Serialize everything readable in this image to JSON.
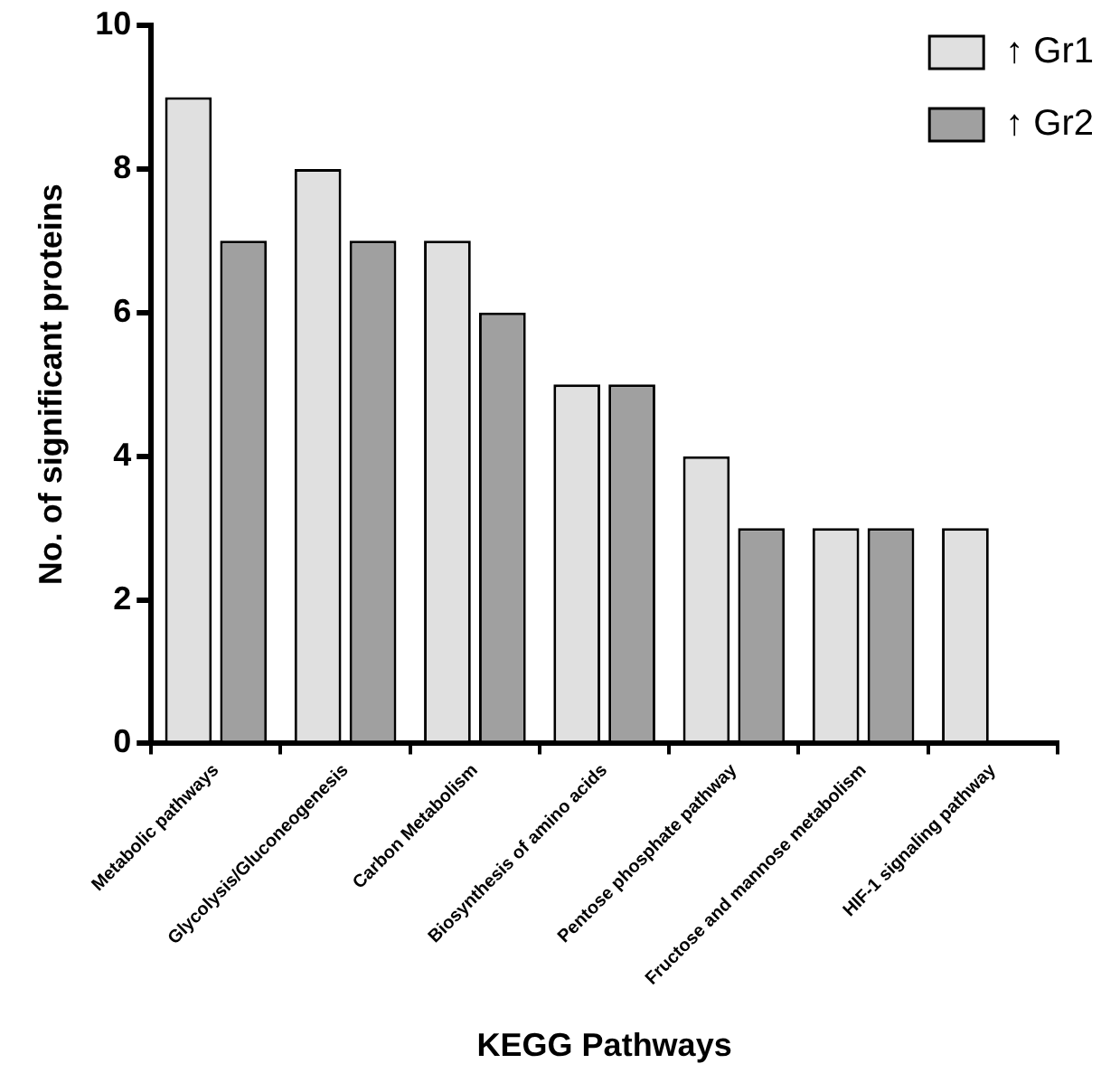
{
  "chart_data": {
    "type": "bar",
    "xlabel": "KEGG Pathways",
    "ylabel": "No. of significant proteins",
    "categories": [
      "Metabolic pathways",
      "Glycolysis/Gluconeogenesis",
      "Carbon Metabolism",
      "Biosynthesis of amino acids",
      "Pentose phosphate pathway",
      "Fructose and mannose metabolism",
      "HIF-1 signaling pathway"
    ],
    "series": [
      {
        "name": "↑ Gr1",
        "color": "#e0e0e0",
        "values": [
          9,
          8,
          7,
          5,
          4,
          3,
          3
        ]
      },
      {
        "name": "↑ Gr2",
        "color": "#a0a0a0",
        "values": [
          7,
          7,
          6,
          5,
          3,
          3,
          null
        ]
      }
    ],
    "ylim": [
      0,
      10
    ],
    "yticks": [
      0,
      2,
      4,
      6,
      8,
      10
    ],
    "grid": false,
    "legend": "top right"
  }
}
